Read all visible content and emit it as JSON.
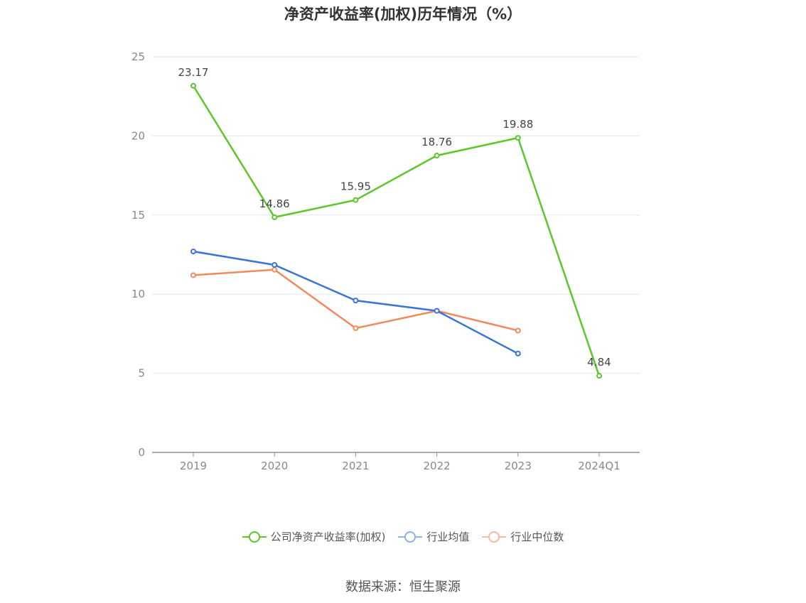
{
  "chart_data": {
    "type": "line",
    "title": "净资产收益率(加权)历年情况（%）",
    "categories": [
      "2019",
      "2020",
      "2021",
      "2022",
      "2023",
      "2024Q1"
    ],
    "ylim": [
      0,
      25
    ],
    "yticks": [
      0,
      5,
      10,
      15,
      20,
      25
    ],
    "grid": true,
    "legend_position": "bottom",
    "series": [
      {
        "name": "公司净资产收益率(加权)",
        "color": "#5cc72b",
        "values": [
          23.17,
          14.86,
          15.95,
          18.76,
          19.88,
          4.84
        ],
        "labels": [
          "23.17",
          "14.86",
          "15.95",
          "18.76",
          "19.88",
          "4.84"
        ]
      },
      {
        "name": "行业均值",
        "color": "#3b73d8",
        "values": [
          12.7,
          11.85,
          9.6,
          8.95,
          6.25,
          null
        ]
      },
      {
        "name": "行业中位数",
        "color": "#ef8a5c",
        "values": [
          11.2,
          11.55,
          7.85,
          8.95,
          7.7,
          null
        ]
      }
    ]
  },
  "legend_colors": [
    "#5cc72b",
    "#8fb0ec",
    "#f7b9a0"
  ],
  "source": "数据来源：恒生聚源"
}
